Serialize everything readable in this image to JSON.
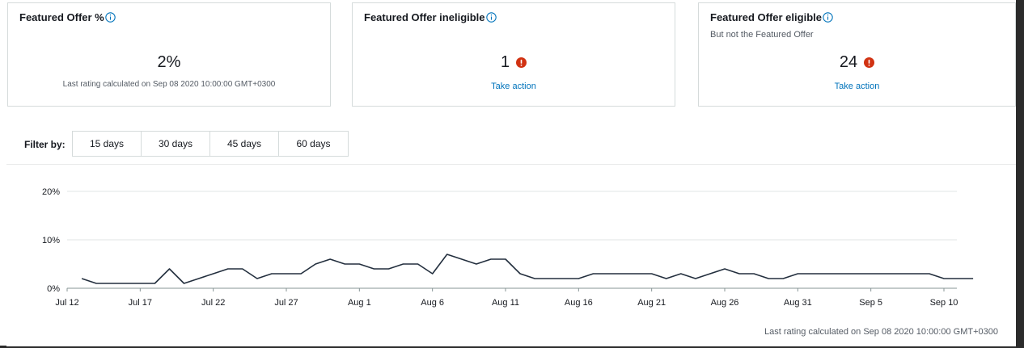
{
  "cards": [
    {
      "title": "Featured Offer %",
      "subtitle": "",
      "value": "2%",
      "note": "Last rating calculated on Sep 08 2020 10:00:00 GMT+0300",
      "link": ""
    },
    {
      "title": "Featured Offer ineligible",
      "subtitle": "",
      "value": "1",
      "note": "",
      "link": "Take action"
    },
    {
      "title": "Featured Offer eligible",
      "subtitle": "But not the Featured Offer",
      "value": "24",
      "note": "",
      "link": "Take action"
    }
  ],
  "filter": {
    "label": "Filter by:",
    "options": [
      "15 days",
      "30 days",
      "45 days",
      "60 days"
    ]
  },
  "colors": {
    "alert": "#d13212",
    "link": "#0073bb",
    "info": "#0073bb",
    "line": "#232f3e"
  },
  "icons": {
    "info": "info-circle-icon",
    "alert": "exclamation-circle-icon"
  },
  "chart_data": {
    "type": "line",
    "x_ticks": [
      "Jul 12",
      "Jul 17",
      "Jul 22",
      "Jul 27",
      "Aug 1",
      "Aug 6",
      "Aug 11",
      "Aug 16",
      "Aug 21",
      "Aug 26",
      "Aug 31",
      "Sep 5",
      "Sep 10"
    ],
    "x_start": "Jul 12",
    "x_end": "Sep 10",
    "y_ticks": [
      "0%",
      "10%",
      "20%"
    ],
    "ylim": [
      0,
      20
    ],
    "grid": true,
    "series": [
      {
        "name": "",
        "values": [
          {
            "x": "Jul 13",
            "y": 2
          },
          {
            "x": "Jul 14",
            "y": 1
          },
          {
            "x": "Jul 15",
            "y": 1
          },
          {
            "x": "Jul 16",
            "y": 1
          },
          {
            "x": "Jul 17",
            "y": 1
          },
          {
            "x": "Jul 18",
            "y": 1
          },
          {
            "x": "Jul 19",
            "y": 4
          },
          {
            "x": "Jul 20",
            "y": 1
          },
          {
            "x": "Jul 21",
            "y": 2
          },
          {
            "x": "Jul 22",
            "y": 3
          },
          {
            "x": "Jul 23",
            "y": 4
          },
          {
            "x": "Jul 24",
            "y": 4
          },
          {
            "x": "Jul 25",
            "y": 2
          },
          {
            "x": "Jul 26",
            "y": 3
          },
          {
            "x": "Jul 27",
            "y": 3
          },
          {
            "x": "Jul 28",
            "y": 3
          },
          {
            "x": "Jul 29",
            "y": 5
          },
          {
            "x": "Jul 30",
            "y": 6
          },
          {
            "x": "Jul 31",
            "y": 5
          },
          {
            "x": "Aug 1",
            "y": 5
          },
          {
            "x": "Aug 2",
            "y": 4
          },
          {
            "x": "Aug 3",
            "y": 4
          },
          {
            "x": "Aug 4",
            "y": 5
          },
          {
            "x": "Aug 5",
            "y": 5
          },
          {
            "x": "Aug 6",
            "y": 3
          },
          {
            "x": "Aug 7",
            "y": 7
          },
          {
            "x": "Aug 8",
            "y": 6
          },
          {
            "x": "Aug 9",
            "y": 5
          },
          {
            "x": "Aug 10",
            "y": 6
          },
          {
            "x": "Aug 11",
            "y": 6
          },
          {
            "x": "Aug 12",
            "y": 3
          },
          {
            "x": "Aug 13",
            "y": 2
          },
          {
            "x": "Aug 14",
            "y": 2
          },
          {
            "x": "Aug 15",
            "y": 2
          },
          {
            "x": "Aug 16",
            "y": 2
          },
          {
            "x": "Aug 17",
            "y": 3
          },
          {
            "x": "Aug 18",
            "y": 3
          },
          {
            "x": "Aug 19",
            "y": 3
          },
          {
            "x": "Aug 20",
            "y": 3
          },
          {
            "x": "Aug 21",
            "y": 3
          },
          {
            "x": "Aug 22",
            "y": 2
          },
          {
            "x": "Aug 23",
            "y": 3
          },
          {
            "x": "Aug 24",
            "y": 2
          },
          {
            "x": "Aug 25",
            "y": 3
          },
          {
            "x": "Aug 26",
            "y": 4
          },
          {
            "x": "Aug 27",
            "y": 3
          },
          {
            "x": "Aug 28",
            "y": 3
          },
          {
            "x": "Aug 29",
            "y": 2
          },
          {
            "x": "Aug 30",
            "y": 2
          },
          {
            "x": "Aug 31",
            "y": 3
          },
          {
            "x": "Sep 1",
            "y": 3
          },
          {
            "x": "Sep 2",
            "y": 3
          },
          {
            "x": "Sep 3",
            "y": 3
          },
          {
            "x": "Sep 4",
            "y": 3
          },
          {
            "x": "Sep 5",
            "y": 3
          },
          {
            "x": "Sep 6",
            "y": 3
          },
          {
            "x": "Sep 7",
            "y": 3
          },
          {
            "x": "Sep 8",
            "y": 3
          },
          {
            "x": "Sep 9",
            "y": 3
          },
          {
            "x": "Sep 10",
            "y": 2
          },
          {
            "x": "Sep 11",
            "y": 2
          },
          {
            "x": "Sep 12",
            "y": 2
          }
        ]
      }
    ]
  },
  "footer_note": "Last rating calculated on Sep 08 2020 10:00:00 GMT+0300"
}
